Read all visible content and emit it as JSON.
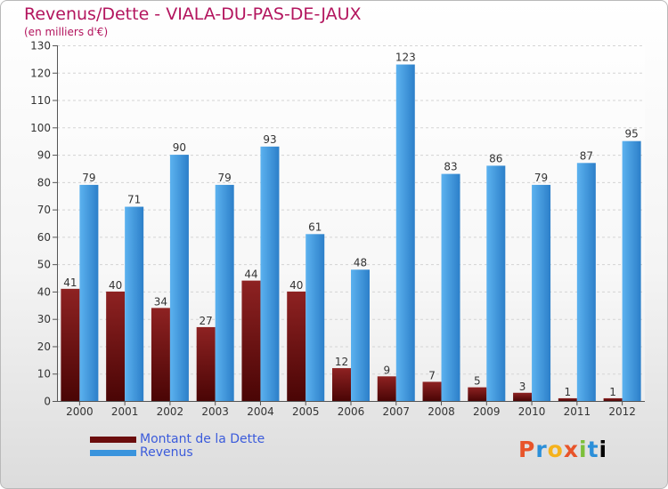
{
  "header": {
    "title": "Revenus/Dette - VIALA-DU-PAS-DE-JAUX",
    "subtitle": "(en milliers d'€)"
  },
  "logo": {
    "text": "Proxiti"
  },
  "colors": {
    "debt": "#6b0d0d",
    "revenue": "#3a94dd",
    "axis_text": "#333333",
    "title": "#b3155e"
  },
  "chart_data": {
    "type": "bar",
    "title": "Revenus/Dette - VIALA-DU-PAS-DE-JAUX",
    "ylabel": "(en milliers d'€)",
    "categories": [
      "2000",
      "2001",
      "2002",
      "2003",
      "2004",
      "2005",
      "2006",
      "2007",
      "2008",
      "2009",
      "2010",
      "2011",
      "2012"
    ],
    "series": [
      {
        "name": "Montant de la Dette",
        "values": [
          41,
          40,
          34,
          27,
          44,
          40,
          12,
          9,
          7,
          5,
          3,
          1,
          1
        ]
      },
      {
        "name": "Revenus",
        "values": [
          79,
          71,
          90,
          79,
          93,
          61,
          48,
          123,
          83,
          86,
          79,
          87,
          95
        ]
      }
    ],
    "ylim": [
      0,
      130
    ],
    "yticks": [
      0,
      10,
      20,
      30,
      40,
      50,
      60,
      70,
      80,
      90,
      100,
      110,
      120,
      130
    ],
    "grid": true,
    "legend_position": "bottom-left"
  }
}
